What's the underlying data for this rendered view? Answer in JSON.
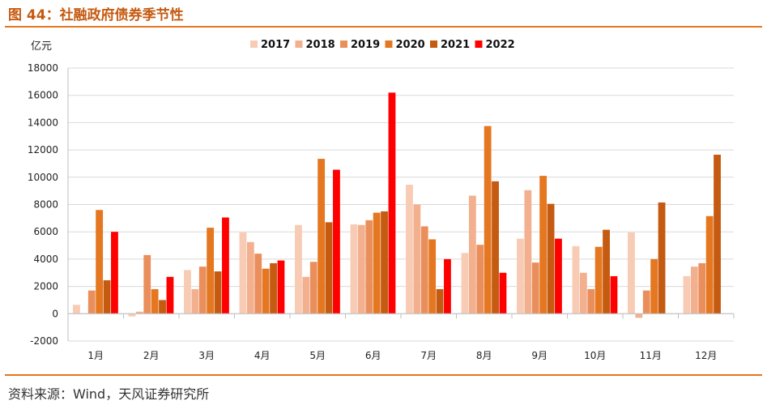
{
  "header": {
    "title": "图 44：社融政府债券季节性"
  },
  "footer": {
    "source": "资料来源：Wind，天风证券研究所"
  },
  "colors": {
    "2017": "#f8cbb4",
    "2018": "#f2b08f",
    "2019": "#ea8f5c",
    "2020": "#e4771f",
    "2021": "#c55a11",
    "2022": "#ff0000",
    "rule": "#e4771f",
    "title": "#c55a11"
  },
  "chart_data": {
    "type": "bar",
    "ylabel": "亿元",
    "ylim": [
      -2000,
      18000
    ],
    "yticks": [
      -2000,
      0,
      2000,
      4000,
      6000,
      8000,
      10000,
      12000,
      14000,
      16000,
      18000
    ],
    "grid": true,
    "legend_position": "top",
    "categories": [
      "1月",
      "2月",
      "3月",
      "4月",
      "5月",
      "6月",
      "7月",
      "8月",
      "9月",
      "10月",
      "11月",
      "12月"
    ],
    "series": [
      {
        "name": "2017",
        "values": [
          650,
          -200,
          3200,
          5950,
          6500,
          6550,
          9450,
          4450,
          5500,
          4950,
          5950,
          2750
        ]
      },
      {
        "name": "2018",
        "values": [
          0,
          150,
          1800,
          5250,
          2700,
          6500,
          8000,
          8650,
          9050,
          3000,
          -300,
          3450
        ]
      },
      {
        "name": "2019",
        "values": [
          1700,
          4300,
          3450,
          4400,
          3800,
          6850,
          6400,
          5050,
          3750,
          1800,
          1700,
          3700
        ]
      },
      {
        "name": "2020",
        "values": [
          7600,
          1800,
          6300,
          3300,
          11350,
          7400,
          5450,
          13750,
          10100,
          4900,
          4000,
          7150
        ]
      },
      {
        "name": "2021",
        "values": [
          2450,
          1000,
          3100,
          3700,
          6700,
          7500,
          1800,
          9700,
          8050,
          6150,
          8150,
          11650
        ]
      },
      {
        "name": "2022",
        "values": [
          6000,
          2700,
          7050,
          3900,
          10550,
          16200,
          4000,
          3000,
          5500,
          2750,
          null,
          null
        ]
      }
    ]
  }
}
